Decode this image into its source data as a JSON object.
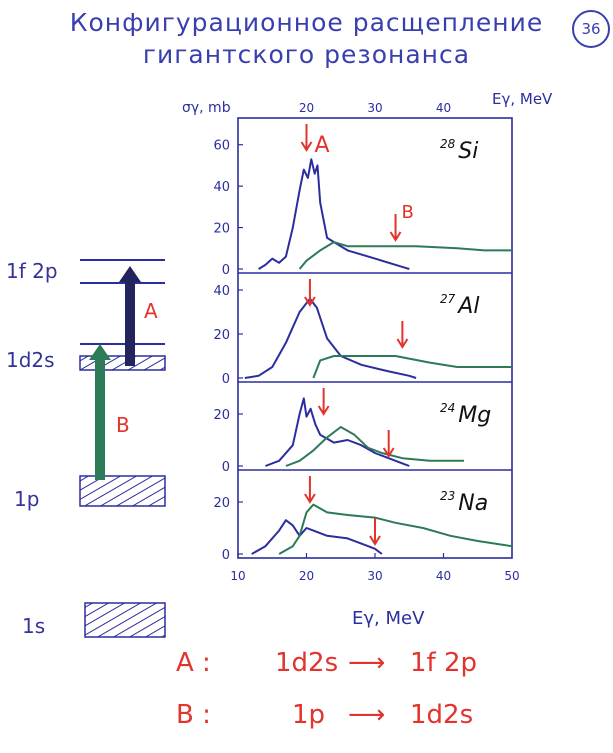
{
  "title": {
    "line1": "Конфигурационное расщепление",
    "line2": "гигантского резонанса"
  },
  "page_number": "36",
  "levels": {
    "f2p": "1f 2p",
    "d2s": "1d2s",
    "p": "1p",
    "s": "1s"
  },
  "transitions": {
    "A": "A",
    "B": "B"
  },
  "legend": {
    "A": {
      "label": "A :",
      "from": "1d2s",
      "to": "1f 2p"
    },
    "B": {
      "label": "B :",
      "from": "1p",
      "to": "1d2s"
    }
  },
  "colors": {
    "ink": "#2b2e9e",
    "red": "#e2332d",
    "green": "#2c7a56",
    "arrow_a": "#23245e"
  },
  "chart_data": {
    "type": "line",
    "ylabel": "σγ, mb",
    "xlabel_top": "Eγ, MeV",
    "xlabel_bottom": "Eγ, MeV",
    "x_ticks_top": [
      "20",
      "30",
      "40"
    ],
    "x_ticks_bottom": [
      "10",
      "20",
      "30",
      "40",
      "50"
    ],
    "xlim": [
      10,
      50
    ],
    "panels": [
      {
        "nucleus": "28Si",
        "mass": "28",
        "symbol": "Si",
        "y_ticks": [
          "60",
          "40",
          "20",
          "0"
        ],
        "ylim": [
          0,
          70
        ],
        "label_A": "A",
        "label_B": "B",
        "arrows_x": [
          20,
          33
        ],
        "series": [
          {
            "color": "blue",
            "points": [
              [
                13,
                0
              ],
              [
                14,
                2
              ],
              [
                15,
                5
              ],
              [
                16,
                3
              ],
              [
                17,
                6
              ],
              [
                18,
                20
              ],
              [
                19,
                38
              ],
              [
                19.6,
                48
              ],
              [
                20.2,
                44
              ],
              [
                20.7,
                53
              ],
              [
                21.2,
                46
              ],
              [
                21.6,
                50
              ],
              [
                22,
                32
              ],
              [
                23,
                15
              ],
              [
                26,
                9
              ],
              [
                30,
                5
              ],
              [
                34,
                1
              ],
              [
                35,
                0
              ]
            ]
          },
          {
            "color": "green",
            "points": [
              [
                19,
                0
              ],
              [
                20,
                4
              ],
              [
                22,
                9
              ],
              [
                24,
                13
              ],
              [
                26,
                11
              ],
              [
                30,
                11
              ],
              [
                36,
                11
              ],
              [
                42,
                10
              ],
              [
                46,
                9
              ],
              [
                50,
                9
              ]
            ]
          }
        ]
      },
      {
        "nucleus": "27Al",
        "mass": "27",
        "symbol": "Al",
        "y_ticks": [
          "40",
          "20",
          "0"
        ],
        "ylim": [
          0,
          45
        ],
        "arrows_x": [
          20.5,
          34
        ],
        "series": [
          {
            "color": "blue",
            "points": [
              [
                11,
                0
              ],
              [
                13,
                1
              ],
              [
                15,
                5
              ],
              [
                17,
                16
              ],
              [
                19,
                30
              ],
              [
                20.5,
                36
              ],
              [
                21.5,
                32
              ],
              [
                23,
                18
              ],
              [
                25,
                10
              ],
              [
                28,
                6
              ],
              [
                32,
                3
              ],
              [
                35,
                1
              ],
              [
                36,
                0
              ]
            ]
          },
          {
            "color": "green",
            "points": [
              [
                21,
                0
              ],
              [
                22,
                8
              ],
              [
                24,
                10
              ],
              [
                28,
                10
              ],
              [
                33,
                10
              ],
              [
                38,
                7
              ],
              [
                42,
                5
              ],
              [
                46,
                5
              ],
              [
                50,
                5
              ]
            ]
          }
        ]
      },
      {
        "nucleus": "24Mg",
        "mass": "24",
        "symbol": "Mg",
        "y_ticks": [
          "20",
          "0"
        ],
        "ylim": [
          0,
          30
        ],
        "arrows_x": [
          22.5,
          32
        ],
        "series": [
          {
            "color": "blue",
            "points": [
              [
                14,
                0
              ],
              [
                16,
                2
              ],
              [
                18,
                8
              ],
              [
                19,
                20
              ],
              [
                19.6,
                26
              ],
              [
                20,
                19
              ],
              [
                20.6,
                22
              ],
              [
                21.3,
                16
              ],
              [
                22,
                12
              ],
              [
                24,
                9
              ],
              [
                26,
                10
              ],
              [
                28,
                8
              ],
              [
                30,
                5
              ],
              [
                32,
                3
              ],
              [
                34,
                1
              ],
              [
                35,
                0
              ]
            ]
          },
          {
            "color": "green",
            "points": [
              [
                17,
                0
              ],
              [
                19,
                2
              ],
              [
                21,
                6
              ],
              [
                23,
                11
              ],
              [
                25,
                15
              ],
              [
                27,
                12
              ],
              [
                29,
                7
              ],
              [
                31,
                5
              ],
              [
                34,
                3
              ],
              [
                38,
                2
              ],
              [
                43,
                2
              ]
            ]
          }
        ]
      },
      {
        "nucleus": "23Na",
        "mass": "23",
        "symbol": "Na",
        "y_ticks": [
          "20",
          "0"
        ],
        "ylim": [
          0,
          30
        ],
        "arrows_x": [
          20.5,
          30
        ],
        "series": [
          {
            "color": "blue",
            "points": [
              [
                12,
                0
              ],
              [
                14,
                3
              ],
              [
                16,
                9
              ],
              [
                17,
                13
              ],
              [
                18,
                11
              ],
              [
                19,
                7
              ],
              [
                20,
                10
              ],
              [
                21,
                9
              ],
              [
                23,
                7
              ],
              [
                26,
                6
              ],
              [
                28,
                4
              ],
              [
                30,
                2
              ],
              [
                31,
                0
              ]
            ]
          },
          {
            "color": "green",
            "points": [
              [
                16,
                0
              ],
              [
                18,
                3
              ],
              [
                19,
                7
              ],
              [
                20,
                16
              ],
              [
                21,
                19
              ],
              [
                23,
                16
              ],
              [
                26,
                15
              ],
              [
                30,
                14
              ],
              [
                33,
                12
              ],
              [
                37,
                10
              ],
              [
                41,
                7
              ],
              [
                45,
                5
              ],
              [
                50,
                3
              ]
            ]
          }
        ]
      }
    ]
  }
}
